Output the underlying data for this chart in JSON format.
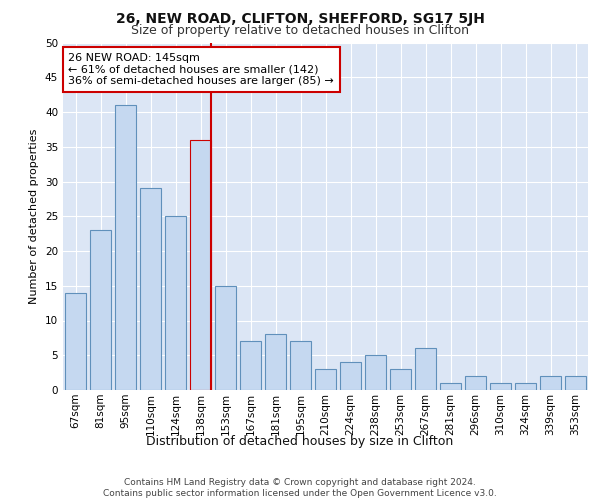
{
  "title": "26, NEW ROAD, CLIFTON, SHEFFORD, SG17 5JH",
  "subtitle": "Size of property relative to detached houses in Clifton",
  "xlabel": "Distribution of detached houses by size in Clifton",
  "ylabel": "Number of detached properties",
  "categories": [
    "67sqm",
    "81sqm",
    "95sqm",
    "110sqm",
    "124sqm",
    "138sqm",
    "153sqm",
    "167sqm",
    "181sqm",
    "195sqm",
    "210sqm",
    "224sqm",
    "238sqm",
    "253sqm",
    "267sqm",
    "281sqm",
    "296sqm",
    "310sqm",
    "324sqm",
    "339sqm",
    "353sqm"
  ],
  "values": [
    14,
    23,
    41,
    29,
    25,
    36,
    15,
    7,
    8,
    7,
    3,
    4,
    5,
    3,
    6,
    1,
    2,
    1,
    1,
    2,
    2
  ],
  "bar_color": "#c5d8f0",
  "bar_edge_color": "#6090bb",
  "highlight_index": 5,
  "vline_color": "#cc0000",
  "annotation_text": "26 NEW ROAD: 145sqm\n← 61% of detached houses are smaller (142)\n36% of semi-detached houses are larger (85) →",
  "annotation_box_facecolor": "#ffffff",
  "annotation_box_edgecolor": "#cc0000",
  "ylim": [
    0,
    50
  ],
  "yticks": [
    0,
    5,
    10,
    15,
    20,
    25,
    30,
    35,
    40,
    45,
    50
  ],
  "background_color": "#dce6f5",
  "grid_color": "#ffffff",
  "footer_text": "Contains HM Land Registry data © Crown copyright and database right 2024.\nContains public sector information licensed under the Open Government Licence v3.0.",
  "title_fontsize": 10,
  "subtitle_fontsize": 9,
  "xlabel_fontsize": 9,
  "ylabel_fontsize": 8,
  "tick_fontsize": 7.5,
  "annotation_fontsize": 8,
  "footer_fontsize": 6.5
}
